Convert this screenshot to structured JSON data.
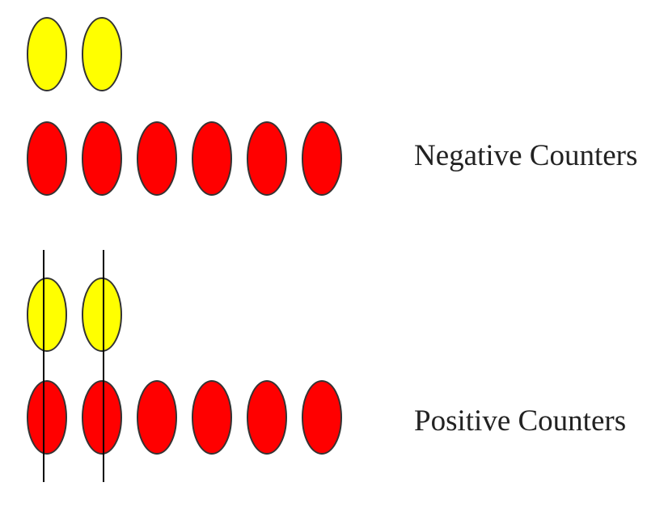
{
  "colors": {
    "zero_counter": "#ffff00",
    "counter": "#ff0000",
    "outline": "#333333",
    "line": "#000000",
    "background": "#ffffff"
  },
  "groups": [
    {
      "label": "Negative Counters",
      "yellow_count": 2,
      "red_count": 6,
      "crossed_pairs": 0
    },
    {
      "label": "Positive Counters",
      "yellow_count": 2,
      "red_count": 6,
      "crossed_pairs": 2
    }
  ]
}
